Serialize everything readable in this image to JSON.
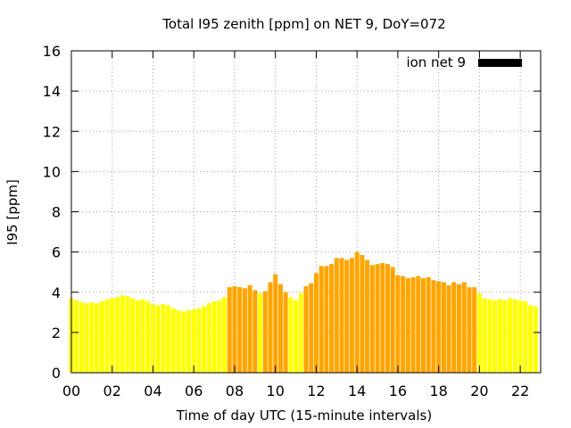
{
  "chart_data": {
    "type": "bar",
    "title": "Total I95 zenith [ppm] on NET 9, DoY=072",
    "xlabel": "Time of day UTC (15-minute intervals)",
    "ylabel": "I95 [ppm]",
    "xlim": [
      0,
      23
    ],
    "ylim": [
      0,
      16
    ],
    "grid": true,
    "legend_placement": "top-right",
    "bar_width_hours": 0.22,
    "x_ticks": [
      "00",
      "02",
      "04",
      "06",
      "08",
      "10",
      "12",
      "14",
      "16",
      "18",
      "20",
      "22"
    ],
    "y_ticks": [
      "0",
      "2",
      "4",
      "6",
      "8",
      "10",
      "12",
      "14",
      "16"
    ],
    "colors": {
      "low": "#ffff00",
      "high": "#ffa500",
      "legend_swatch": "#000000",
      "grid": "#a0a0a0"
    },
    "threshold": 4.0,
    "series": [
      {
        "name": "ion net 9",
        "x": [
          0.0,
          0.25,
          0.5,
          0.75,
          1.0,
          1.25,
          1.5,
          1.75,
          2.0,
          2.25,
          2.5,
          2.75,
          3.0,
          3.25,
          3.5,
          3.75,
          4.0,
          4.25,
          4.5,
          4.75,
          5.0,
          5.25,
          5.5,
          5.75,
          6.0,
          6.25,
          6.5,
          6.75,
          7.0,
          7.25,
          7.5,
          7.75,
          8.0,
          8.25,
          8.5,
          8.75,
          9.0,
          9.25,
          9.5,
          9.75,
          10.0,
          10.25,
          10.5,
          10.75,
          11.0,
          11.25,
          11.5,
          11.75,
          12.0,
          12.25,
          12.5,
          12.75,
          13.0,
          13.25,
          13.5,
          13.75,
          14.0,
          14.25,
          14.5,
          14.75,
          15.0,
          15.25,
          15.5,
          15.75,
          16.0,
          16.25,
          16.5,
          16.75,
          17.0,
          17.25,
          17.5,
          17.75,
          18.0,
          18.25,
          18.5,
          18.75,
          19.0,
          19.25,
          19.5,
          19.75,
          20.0,
          20.25,
          20.5,
          20.75,
          21.0,
          21.25,
          21.5,
          21.75,
          22.0,
          22.25,
          22.5,
          22.75
        ],
        "values": [
          3.7,
          3.6,
          3.5,
          3.45,
          3.5,
          3.45,
          3.55,
          3.65,
          3.7,
          3.75,
          3.85,
          3.8,
          3.7,
          3.6,
          3.65,
          3.55,
          3.4,
          3.35,
          3.4,
          3.35,
          3.2,
          3.1,
          3.05,
          3.1,
          3.15,
          3.2,
          3.3,
          3.45,
          3.55,
          3.6,
          3.75,
          4.25,
          4.3,
          4.25,
          4.2,
          4.35,
          4.1,
          3.95,
          4.05,
          4.5,
          4.9,
          4.4,
          4.0,
          3.75,
          3.6,
          3.95,
          4.3,
          4.45,
          4.95,
          5.3,
          5.3,
          5.4,
          5.7,
          5.7,
          5.6,
          5.7,
          6.0,
          5.85,
          5.6,
          5.35,
          5.4,
          5.45,
          5.4,
          5.25,
          4.85,
          4.8,
          4.7,
          4.75,
          4.8,
          4.7,
          4.75,
          4.6,
          4.55,
          4.5,
          4.35,
          4.5,
          4.4,
          4.5,
          4.25,
          4.25,
          3.95,
          3.7,
          3.65,
          3.6,
          3.65,
          3.6,
          3.7,
          3.65,
          3.6,
          3.55,
          3.35,
          3.3
        ]
      }
    ]
  }
}
